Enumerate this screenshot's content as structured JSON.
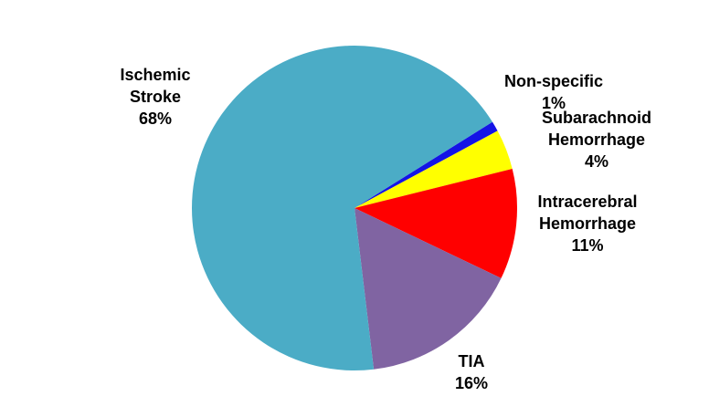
{
  "chart_data": {
    "type": "pie",
    "title": "",
    "start_angle_deg": 32,
    "direction": "clockwise",
    "slices": [
      {
        "name": "Non-specific",
        "label_lines": [
          "Non-specific",
          "1%"
        ],
        "percent_label": "1%",
        "value": 1,
        "color": "#1414E6"
      },
      {
        "name": "Subarachnoid Hemorrhage",
        "label_lines": [
          "Subarachnoid",
          "Hemorrhage",
          "4%"
        ],
        "percent_label": "4%",
        "value": 4,
        "color": "#FFFF00"
      },
      {
        "name": "Intracerebral Hemorrhage",
        "label_lines": [
          "Intracerebral",
          "Hemorrhage",
          "11%"
        ],
        "percent_label": "11%",
        "value": 11,
        "color": "#FF0000"
      },
      {
        "name": "TIA",
        "label_lines": [
          "TIA",
          "16%"
        ],
        "percent_label": "16%",
        "value": 16,
        "color": "#8064A2"
      },
      {
        "name": "Ischemic Stroke",
        "label_lines": [
          "Ischemic",
          "Stroke",
          "68%"
        ],
        "percent_label": "68%",
        "value": 68,
        "color": "#4BACC6"
      }
    ],
    "legend": "none",
    "labels": "outside, category name and percentage"
  }
}
